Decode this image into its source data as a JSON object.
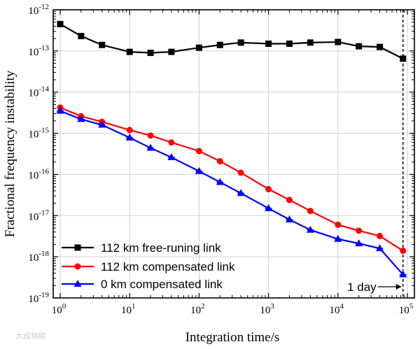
{
  "chart_data": {
    "type": "line",
    "xlabel": "Integration time/s",
    "ylabel": "Fractional frequency instability",
    "xscale": "log",
    "yscale": "log",
    "xlim": [
      1,
      100000
    ],
    "ylim": [
      1e-19,
      1e-12
    ],
    "grid": true,
    "legend_position": "bottom-left",
    "x_tick_labels": [
      {
        "base": "10",
        "exp": "0"
      },
      {
        "base": "10",
        "exp": "1"
      },
      {
        "base": "10",
        "exp": "2"
      },
      {
        "base": "10",
        "exp": "3"
      },
      {
        "base": "10",
        "exp": "4"
      },
      {
        "base": "10",
        "exp": "5"
      }
    ],
    "y_tick_labels": [
      {
        "base": "10",
        "exp": "-12"
      },
      {
        "base": "10",
        "exp": "-13"
      },
      {
        "base": "10",
        "exp": "-14"
      },
      {
        "base": "10",
        "exp": "-15"
      },
      {
        "base": "10",
        "exp": "-16"
      },
      {
        "base": "10",
        "exp": "-17"
      },
      {
        "base": "10",
        "exp": "-18"
      },
      {
        "base": "10",
        "exp": "-19"
      }
    ],
    "series": [
      {
        "name": "112 km free-runing link",
        "color": "#000000",
        "marker": "square",
        "x": [
          1,
          2,
          4,
          10,
          20,
          40,
          100,
          200,
          400,
          1000,
          2000,
          4000,
          10000,
          20000,
          40000,
          86400
        ],
        "y": [
          4.5e-13,
          2.3e-13,
          1.4e-13,
          9.5e-14,
          9e-14,
          9.5e-14,
          1.2e-13,
          1.4e-13,
          1.6e-13,
          1.5e-13,
          1.5e-13,
          1.6e-13,
          1.65e-13,
          1.3e-13,
          1.25e-13,
          6.5e-14
        ]
      },
      {
        "name": "112 km compensated link",
        "color": "#ff0000",
        "marker": "circle",
        "x": [
          1,
          2,
          4,
          10,
          20,
          40,
          100,
          200,
          400,
          1000,
          2000,
          4000,
          10000,
          20000,
          40000,
          86400
        ],
        "y": [
          4.2e-15,
          2.6e-15,
          1.9e-15,
          1.2e-15,
          8.8e-16,
          6e-16,
          3.7e-16,
          2.1e-16,
          1.1e-16,
          4.4e-17,
          2.4e-17,
          1.3e-17,
          6e-18,
          4.3e-18,
          3.2e-18,
          1.4e-18
        ]
      },
      {
        "name": "0 km compensated link",
        "color": "#0000ff",
        "marker": "triangle",
        "x": [
          1,
          2,
          4,
          10,
          20,
          40,
          100,
          200,
          400,
          1000,
          2000,
          4000,
          10000,
          20000,
          40000,
          86400
        ],
        "y": [
          3.5e-15,
          2.2e-15,
          1.6e-15,
          7.8e-16,
          4.4e-16,
          2.6e-16,
          1.2e-16,
          6.5e-17,
          3.5e-17,
          1.5e-17,
          8e-18,
          4.5e-18,
          2.7e-18,
          2.1e-18,
          1.6e-18,
          3.7e-19
        ]
      }
    ],
    "annotation": {
      "text": "1 day",
      "x_value": 86400
    }
  },
  "watermark": {
    "text": "大成物联"
  }
}
